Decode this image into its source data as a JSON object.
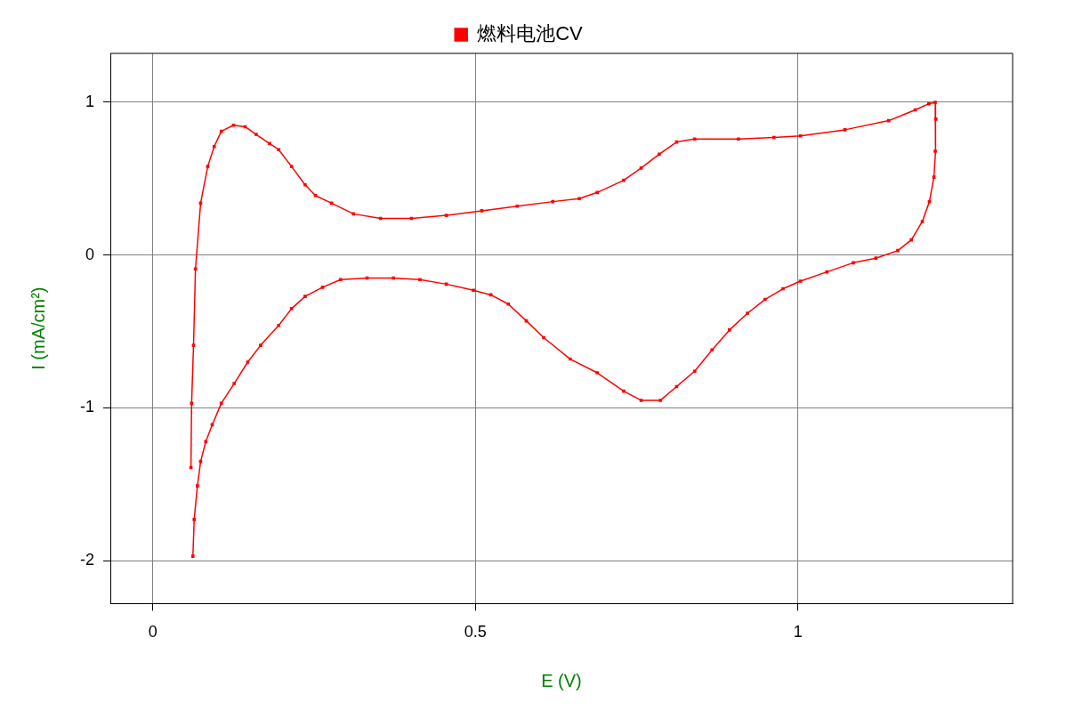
{
  "chart_data": {
    "type": "line",
    "xlabel": "E (V)",
    "ylabel": "I (mA/cm²)",
    "xlim": [
      -0.066,
      1.333
    ],
    "xticks": [
      0,
      0.5,
      1
    ],
    "ylim": [
      -2.28,
      1.32
    ],
    "yticks": [
      -2,
      -1,
      0,
      1
    ],
    "grid": true,
    "legend": "top",
    "marker": "square",
    "line_style": "solid",
    "series": [
      {
        "name": "燃料电池CV",
        "color": "#ff0000",
        "x": [
          0.059,
          0.06,
          0.063,
          0.066,
          0.074,
          0.085,
          0.095,
          0.106,
          0.125,
          0.143,
          0.16,
          0.181,
          0.195,
          0.215,
          0.236,
          0.252,
          0.277,
          0.311,
          0.353,
          0.401,
          0.455,
          0.51,
          0.565,
          0.62,
          0.661,
          0.689,
          0.73,
          0.757,
          0.785,
          0.812,
          0.84,
          0.908,
          0.963,
          1.004,
          1.073,
          1.141,
          1.182,
          1.203,
          1.213,
          1.214,
          1.213,
          1.211,
          1.204,
          1.193,
          1.176,
          1.155,
          1.121,
          1.086,
          1.045,
          1.004,
          0.977,
          0.949,
          0.922,
          0.894,
          0.867,
          0.84,
          0.812,
          0.787,
          0.757,
          0.73,
          0.689,
          0.647,
          0.606,
          0.579,
          0.551,
          0.524,
          0.497,
          0.455,
          0.414,
          0.373,
          0.332,
          0.291,
          0.263,
          0.236,
          0.215,
          0.195,
          0.167,
          0.147,
          0.126,
          0.106,
          0.092,
          0.082,
          0.074,
          0.069,
          0.064,
          0.062
        ],
        "values": [
          -1.39,
          -0.97,
          -0.59,
          -0.09,
          0.34,
          0.58,
          0.71,
          0.81,
          0.85,
          0.84,
          0.79,
          0.73,
          0.69,
          0.58,
          0.46,
          0.39,
          0.34,
          0.27,
          0.24,
          0.24,
          0.26,
          0.29,
          0.32,
          0.35,
          0.37,
          0.41,
          0.49,
          0.57,
          0.66,
          0.74,
          0.76,
          0.76,
          0.77,
          0.78,
          0.82,
          0.88,
          0.95,
          0.99,
          1.0,
          0.89,
          0.68,
          0.51,
          0.35,
          0.22,
          0.1,
          0.03,
          -0.02,
          -0.05,
          -0.11,
          -0.17,
          -0.22,
          -0.29,
          -0.38,
          -0.49,
          -0.62,
          -0.76,
          -0.86,
          -0.95,
          -0.95,
          -0.89,
          -0.77,
          -0.68,
          -0.54,
          -0.43,
          -0.32,
          -0.26,
          -0.23,
          -0.19,
          -0.16,
          -0.15,
          -0.15,
          -0.16,
          -0.21,
          -0.27,
          -0.35,
          -0.46,
          -0.59,
          -0.7,
          -0.84,
          -0.97,
          -1.11,
          -1.22,
          -1.35,
          -1.51,
          -1.73,
          -1.97
        ]
      }
    ]
  }
}
